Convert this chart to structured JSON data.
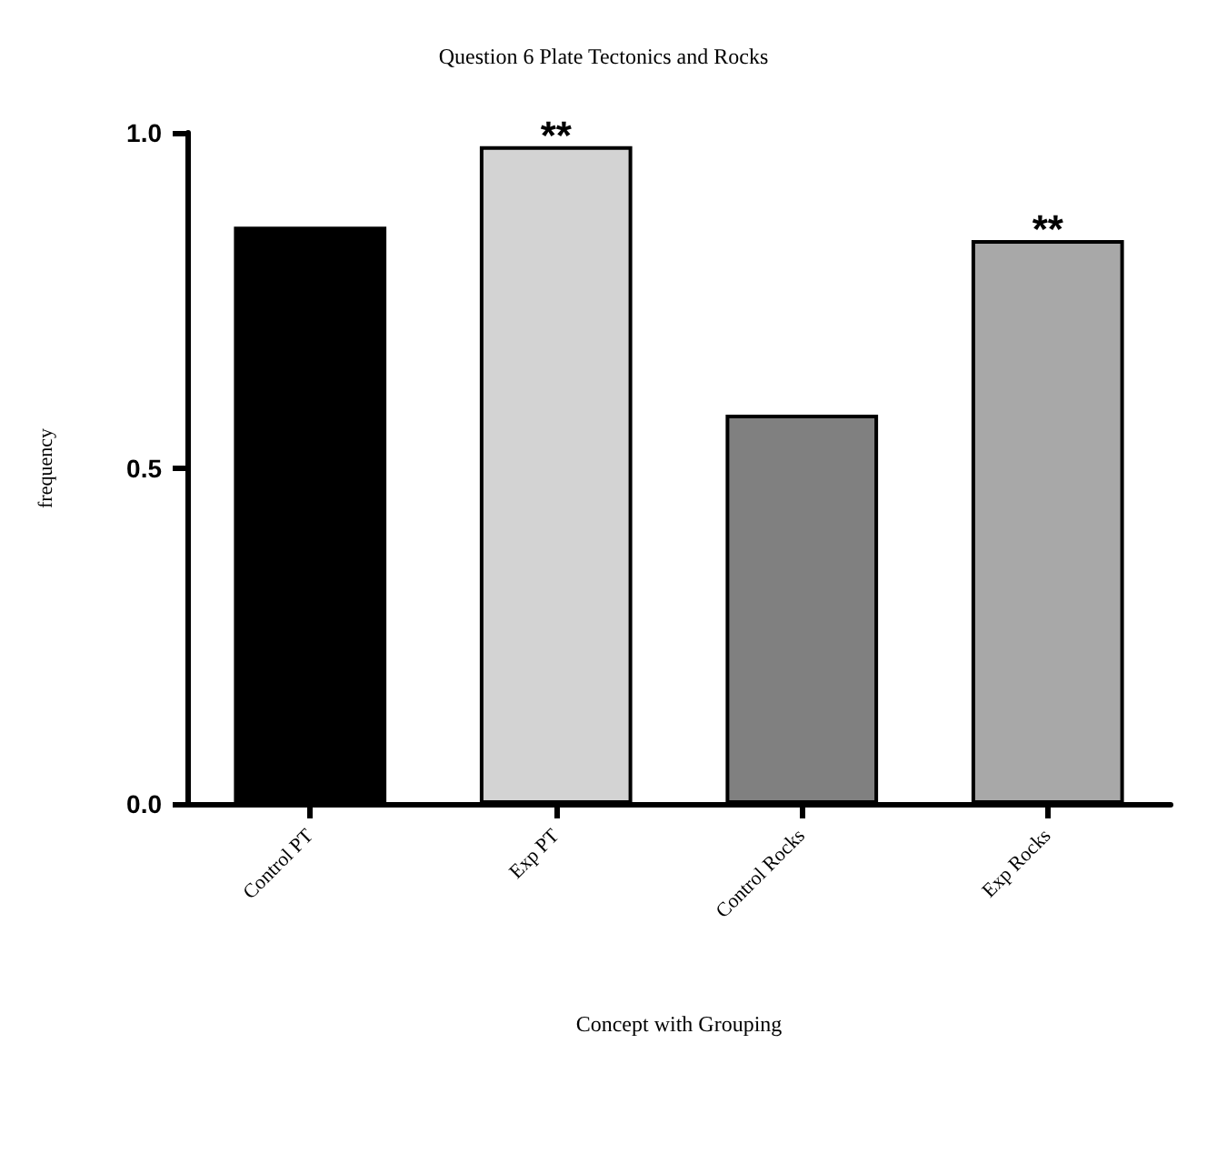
{
  "chart_data": {
    "type": "bar",
    "title": "Question 6 Plate Tectonics and Rocks",
    "xlabel": "Concept with Grouping",
    "ylabel": "frequency",
    "categories": [
      "Control PT",
      "Exp PT",
      "Control Rocks",
      "Exp Rocks"
    ],
    "values": [
      0.86,
      0.98,
      0.58,
      0.84
    ],
    "colors": [
      "#000000",
      "#d3d3d3",
      "#808080",
      "#a8a8a8"
    ],
    "ylim": [
      0,
      1
    ],
    "yticks": [
      {
        "value": 0,
        "label": "0.0"
      },
      {
        "value": 0.5,
        "label": "0.5"
      },
      {
        "value": 1,
        "label": "1.0"
      }
    ],
    "annotations": [
      {
        "text": "**",
        "x": "Exp PT",
        "y": 0.98
      },
      {
        "text": "**",
        "x": "Exp Rocks",
        "y": 0.84
      }
    ],
    "grid": false
  }
}
